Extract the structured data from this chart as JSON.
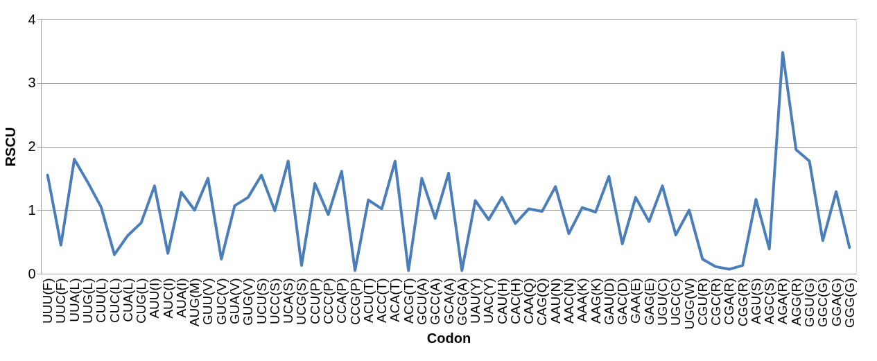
{
  "chart_data": {
    "type": "line",
    "xlabel": "Codon",
    "ylabel": "RSCU",
    "categories": [
      "UUU(F)",
      "UUC(F)",
      "UUA(L)",
      "UUG(L)",
      "CUU(L)",
      "CUC(L)",
      "CUA(L)",
      "CUG(L)",
      "AUU(I)",
      "AUC(I)",
      "AUA(I)",
      "AUG(M)",
      "GUU(V)",
      "GUC(V)",
      "GUA(V)",
      "GUG(V)",
      "UCU(S)",
      "UCC(S)",
      "UCA(S)",
      "UCG(S)",
      "CCU(P)",
      "CCC(P)",
      "CCA(P)",
      "CCG(P)",
      "ACU(T)",
      "ACC(T)",
      "ACA(T)",
      "ACG(T)",
      "GCU(A)",
      "GCC(A)",
      "GCA(A)",
      "GCG(A)",
      "UAU(Y)",
      "UAC(Y)",
      "CAU(H)",
      "CAC(H)",
      "CAA(Q)",
      "CAG(Q)",
      "AAU(N)",
      "AAC(N)",
      "AAA(K)",
      "AAG(K)",
      "GAU(D)",
      "GAC(D)",
      "GAA(E)",
      "GAG(E)",
      "UGU(C)",
      "UGC(C)",
      "UGG(W)",
      "CGU(R)",
      "CGC(R)",
      "CGA(R)",
      "CGG(R)",
      "AGU(S)",
      "AGC(S)",
      "AGA(R)",
      "AGG(R)",
      "GGU(G)",
      "GGC(G)",
      "GGA(G)",
      "GGG(G)"
    ],
    "series": [
      {
        "color": "#4a7ebb",
        "values": [
          1.55,
          0.45,
          1.8,
          1.44,
          1.05,
          0.3,
          0.6,
          0.8,
          1.38,
          0.32,
          1.28,
          1.0,
          1.5,
          0.23,
          1.07,
          1.2,
          1.55,
          0.99,
          1.77,
          0.13,
          1.42,
          0.93,
          1.61,
          0.05,
          1.16,
          1.02,
          1.77,
          0.05,
          1.5,
          0.87,
          1.58,
          0.05,
          1.15,
          0.85,
          1.2,
          0.79,
          1.02,
          0.98,
          1.37,
          0.63,
          1.04,
          0.97,
          1.53,
          0.47,
          1.2,
          0.82,
          1.38,
          0.61,
          1.0,
          0.23,
          0.11,
          0.07,
          0.13,
          1.17,
          0.39,
          3.48,
          1.95,
          1.77,
          0.52,
          1.29,
          0.41
        ]
      }
    ],
    "ylim": [
      0,
      4
    ],
    "yticks": [
      0,
      1,
      2,
      3,
      4
    ],
    "grid": "y",
    "line_style": "solid"
  }
}
